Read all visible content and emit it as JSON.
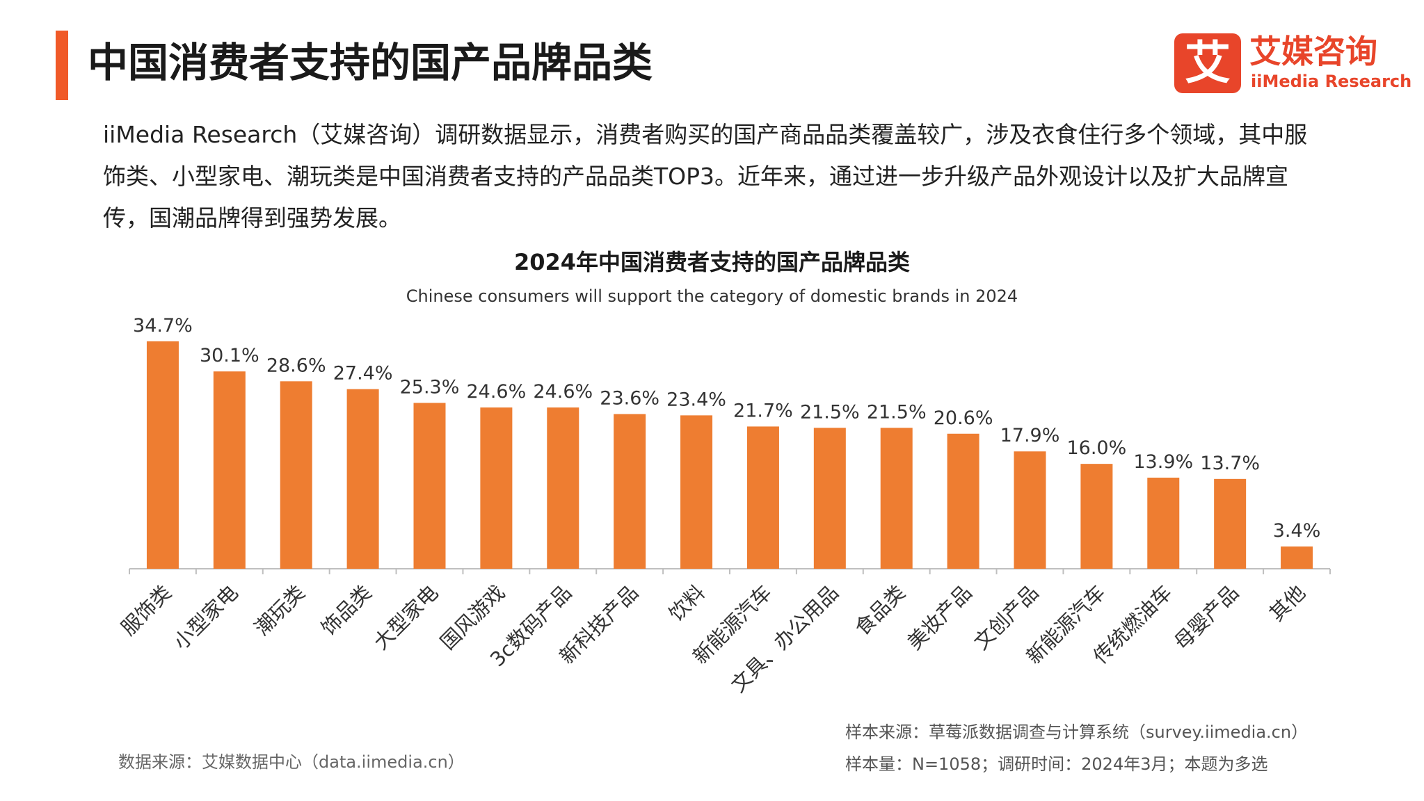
{
  "header": {
    "title": "中国消费者支持的国产品牌品类"
  },
  "logo": {
    "mark": "艾",
    "cn": "艾媒咨询",
    "en": "iiMedia Research"
  },
  "intro": "iiMedia Research（艾媒咨询）调研数据显示，消费者购买的国产商品品类覆盖较广，涉及衣食住行多个领域，其中服饰类、小型家电、潮玩类是中国消费者支持的产品品类TOP3。近年来，通过进一步升级产品外观设计以及扩大品牌宣传，国潮品牌得到强势发展。",
  "chart_data": {
    "type": "bar",
    "title": "2024年中国消费者支持的国产品牌品类",
    "subtitle": "Chinese consumers will support the category of domestic brands in 2024",
    "categories": [
      "服饰类",
      "小型家电",
      "潮玩类",
      "饰品类",
      "大型家电",
      "国风游戏",
      "3c数码产品",
      "新科技产品",
      "饮料",
      "新能源汽车",
      "文具、办公用品",
      "食品类",
      "美妆产品",
      "文创产品",
      "新能源汽车",
      "传统燃油车",
      "母婴产品",
      "其他"
    ],
    "values": [
      34.7,
      30.1,
      28.6,
      27.4,
      25.3,
      24.6,
      24.6,
      23.6,
      23.4,
      21.7,
      21.5,
      21.5,
      20.6,
      17.9,
      16.0,
      13.9,
      13.7,
      3.4
    ],
    "labels": [
      "34.7%",
      "30.1%",
      "28.6%",
      "27.4%",
      "25.3%",
      "24.6%",
      "24.6%",
      "23.6%",
      "23.4%",
      "21.7%",
      "21.5%",
      "21.5%",
      "20.6%",
      "17.9%",
      "16.0%",
      "13.9%",
      "13.7%",
      "3.4%"
    ],
    "unit": "%",
    "ylim": [
      0,
      35
    ],
    "grid": false,
    "legend": "none",
    "bar_color": "#ee7d31"
  },
  "footer": {
    "data_source": "数据来源：艾媒数据中心（data.iimedia.cn）",
    "sample_source": "样本来源：草莓派数据调查与计算系统（survey.iimedia.cn）",
    "sample_size": "样本量：N=1058；调研时间：2024年3月；本题为多选"
  },
  "colors": {
    "accent": "#f05a28",
    "brand": "#e8452a",
    "bar": "#ee7d31"
  }
}
